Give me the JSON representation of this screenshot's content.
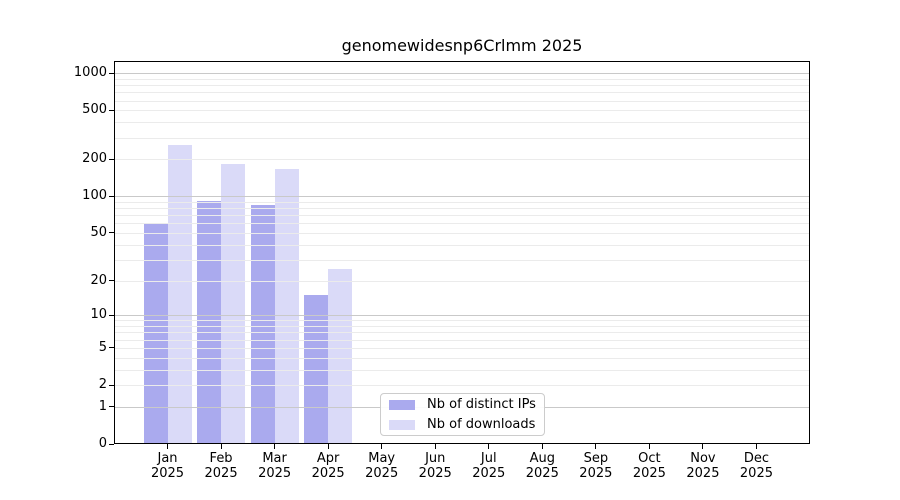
{
  "figure": {
    "background": "#ffffff"
  },
  "chart_data": {
    "type": "bar",
    "title": "genomewidesnp6Crlmm 2025",
    "year_label": "2025",
    "categories": [
      "Jan",
      "Feb",
      "Mar",
      "Apr",
      "May",
      "Jun",
      "Jul",
      "Aug",
      "Sep",
      "Oct",
      "Nov",
      "Dec"
    ],
    "series": [
      {
        "name": "Nb of distinct IPs",
        "color": "#aaaaee",
        "values": [
          60,
          92,
          85,
          15,
          0,
          0,
          0,
          0,
          0,
          0,
          0,
          0
        ]
      },
      {
        "name": "Nb of downloads",
        "color": "#dadaf8",
        "values": [
          260,
          185,
          168,
          25,
          0,
          0,
          0,
          0,
          0,
          0,
          0,
          0
        ]
      }
    ],
    "y_axis": {
      "scale": "log1p",
      "ticks": [
        0,
        1,
        2,
        5,
        10,
        20,
        50,
        100,
        200,
        500,
        1000
      ],
      "ylim": [
        0,
        1255
      ]
    },
    "x_axis": {
      "tick_label_lines": 2
    },
    "grid": {
      "visible": true,
      "major_values": [
        1,
        10,
        100,
        1000
      ],
      "major_color": "#c9c9c9",
      "minor_color": "#ebebeb"
    },
    "legend": {
      "position": "lower-center"
    },
    "axis_color": "#000000",
    "text_color": "#000000"
  }
}
